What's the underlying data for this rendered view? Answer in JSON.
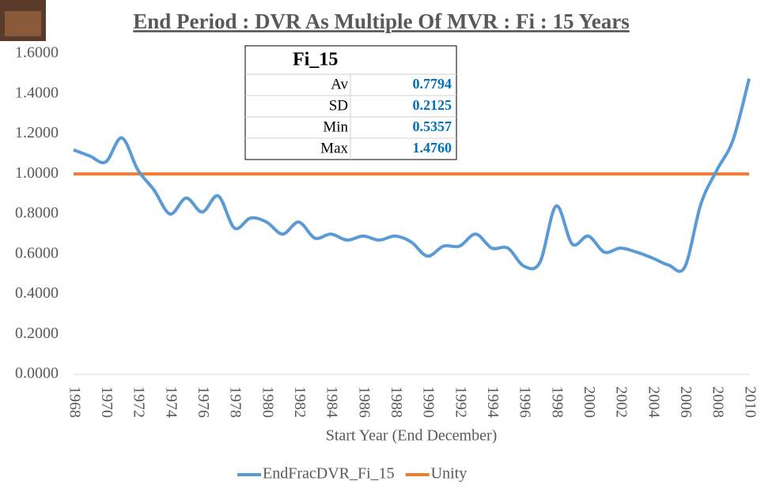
{
  "chart_data": {
    "type": "line",
    "title": "End Period : DVR As Multiple Of MVR : Fi : 15 Years",
    "x_label": "Start Year (End December)",
    "x": [
      1968,
      1969,
      1970,
      1971,
      1972,
      1973,
      1974,
      1975,
      1976,
      1977,
      1978,
      1979,
      1980,
      1981,
      1982,
      1983,
      1984,
      1985,
      1986,
      1987,
      1988,
      1989,
      1990,
      1991,
      1992,
      1993,
      1994,
      1995,
      1996,
      1997,
      1998,
      1999,
      2000,
      2001,
      2002,
      2003,
      2004,
      2005,
      2006,
      2007,
      2008,
      2009,
      2010
    ],
    "xlim": [
      1968,
      2010
    ],
    "xticks": [
      1968,
      1970,
      1972,
      1974,
      1976,
      1978,
      1980,
      1982,
      1984,
      1986,
      1988,
      1990,
      1992,
      1994,
      1996,
      1998,
      2000,
      2002,
      2004,
      2006,
      2008,
      2010
    ],
    "ylim": [
      0,
      1.6
    ],
    "yticks": [
      {
        "value": 0,
        "label": "0.0000"
      },
      {
        "value": 0.2,
        "label": "0.2000"
      },
      {
        "value": 0.4,
        "label": "0.4000"
      },
      {
        "value": 0.6,
        "label": "0.6000"
      },
      {
        "value": 0.8,
        "label": "0.8000"
      },
      {
        "value": 1,
        "label": "1.0000"
      },
      {
        "value": 1.2,
        "label": "1.2000"
      },
      {
        "value": 1.4,
        "label": "1.4000"
      },
      {
        "value": 1.6,
        "label": "1.6000"
      }
    ],
    "grid": false,
    "legend": "bottom",
    "series": [
      {
        "name": "EndFracDVR_Fi_15",
        "color": "#5b9bd5",
        "values": [
          1.12,
          1.09,
          1.06,
          1.18,
          1.02,
          0.92,
          0.8,
          0.88,
          0.81,
          0.89,
          0.73,
          0.78,
          0.76,
          0.7,
          0.76,
          0.68,
          0.7,
          0.67,
          0.69,
          0.67,
          0.69,
          0.66,
          0.59,
          0.64,
          0.64,
          0.7,
          0.63,
          0.63,
          0.54,
          0.56,
          0.84,
          0.65,
          0.69,
          0.61,
          0.63,
          0.61,
          0.58,
          0.545,
          0.5357,
          0.85,
          1.02,
          1.17,
          1.476
        ]
      },
      {
        "name": "Unity",
        "color": "#ed7d31",
        "values": [
          1,
          1,
          1,
          1,
          1,
          1,
          1,
          1,
          1,
          1,
          1,
          1,
          1,
          1,
          1,
          1,
          1,
          1,
          1,
          1,
          1,
          1,
          1,
          1,
          1,
          1,
          1,
          1,
          1,
          1,
          1,
          1,
          1,
          1,
          1,
          1,
          1,
          1,
          1,
          1,
          1,
          1,
          1
        ]
      }
    ],
    "stats": {
      "title": "Fi_15",
      "rows": [
        [
          "Av",
          "0.7794"
        ],
        [
          "SD",
          "0.2125"
        ],
        [
          "Min",
          "0.5357"
        ],
        [
          "Max",
          "1.4760"
        ]
      ]
    }
  }
}
